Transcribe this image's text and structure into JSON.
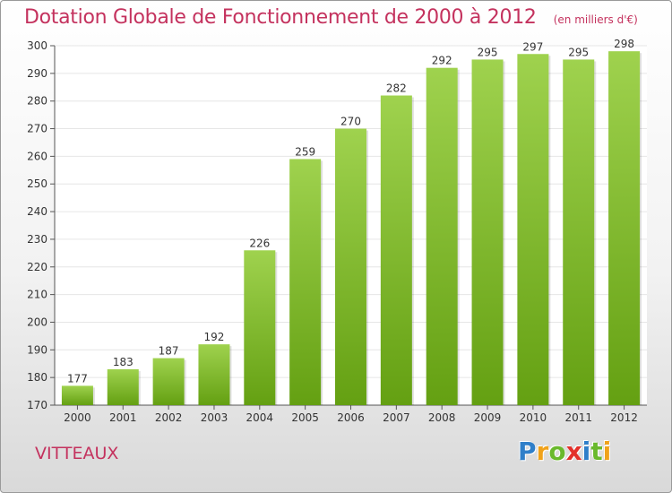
{
  "title": "Dotation Globale de Fonctionnement de 2000 à 2012",
  "subtitle": "(en milliers d'€)",
  "commune": "VITTEAUX",
  "logo": {
    "letters": [
      "P",
      "r",
      "o",
      "x",
      "i",
      "t",
      "i"
    ],
    "colors": [
      "#2f7fc9",
      "#f0a21b",
      "#6ab92d",
      "#e3312b",
      "#2f7fc9",
      "#6ab92d",
      "#f0a21b"
    ]
  },
  "colors": {
    "bar_top": "#9fd24e",
    "bar_bottom": "#64a012",
    "grid": "#e6e6e6",
    "text": "#333333",
    "accent": "#c4325e"
  },
  "chart_data": {
    "type": "bar",
    "categories": [
      "2000",
      "2001",
      "2002",
      "2003",
      "2004",
      "2005",
      "2006",
      "2007",
      "2008",
      "2009",
      "2010",
      "2011",
      "2012"
    ],
    "values": [
      177,
      183,
      187,
      192,
      226,
      259,
      270,
      282,
      292,
      295,
      297,
      295,
      298
    ],
    "ylim": [
      170,
      300
    ],
    "yticks": [
      170,
      180,
      190,
      200,
      210,
      220,
      230,
      240,
      250,
      260,
      270,
      280,
      290,
      300
    ],
    "grid": true,
    "data_labels": true
  }
}
